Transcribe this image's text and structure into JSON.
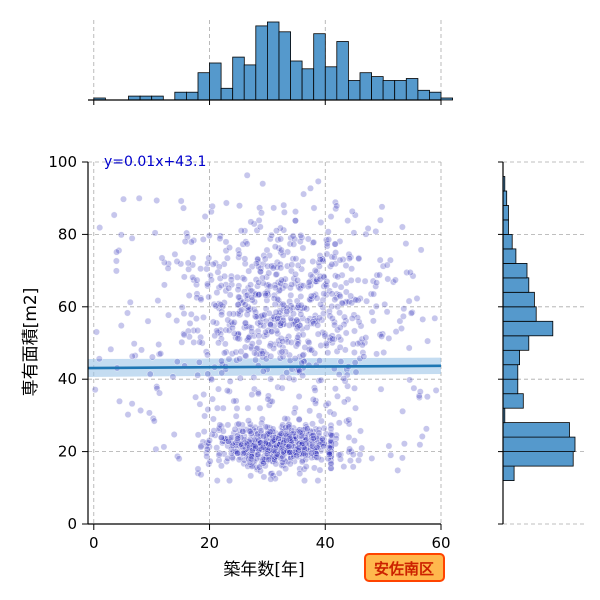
{
  "chart_data": {
    "type": "scatter",
    "xlabel": "築年数[年]",
    "ylabel": "専有面積[m2]",
    "xlim": [
      -1,
      60
    ],
    "ylim": [
      0,
      100
    ],
    "x_ticks": [
      0,
      20,
      40,
      60
    ],
    "y_ticks": [
      0,
      20,
      40,
      60,
      80,
      100
    ],
    "grid": true,
    "regression": {
      "equation_label": "y=0.01x+43.1",
      "slope": 0.01,
      "intercept": 43.1
    },
    "region_label": "安佐南区",
    "marginal_x_histogram": {
      "bin_width": 2,
      "bins": [
        {
          "x": 0,
          "count": 1
        },
        {
          "x": 6,
          "count": 2
        },
        {
          "x": 8,
          "count": 2
        },
        {
          "x": 10,
          "count": 2
        },
        {
          "x": 14,
          "count": 4
        },
        {
          "x": 16,
          "count": 4
        },
        {
          "x": 18,
          "count": 14
        },
        {
          "x": 20,
          "count": 19
        },
        {
          "x": 22,
          "count": 6
        },
        {
          "x": 24,
          "count": 22
        },
        {
          "x": 26,
          "count": 18
        },
        {
          "x": 28,
          "count": 38
        },
        {
          "x": 30,
          "count": 40
        },
        {
          "x": 32,
          "count": 35
        },
        {
          "x": 34,
          "count": 20
        },
        {
          "x": 36,
          "count": 16
        },
        {
          "x": 38,
          "count": 34
        },
        {
          "x": 40,
          "count": 17
        },
        {
          "x": 42,
          "count": 30
        },
        {
          "x": 44,
          "count": 10
        },
        {
          "x": 46,
          "count": 14
        },
        {
          "x": 48,
          "count": 12
        },
        {
          "x": 50,
          "count": 10
        },
        {
          "x": 52,
          "count": 10
        },
        {
          "x": 54,
          "count": 11
        },
        {
          "x": 56,
          "count": 5
        },
        {
          "x": 58,
          "count": 4
        },
        {
          "x": 60,
          "count": 1
        }
      ]
    },
    "marginal_y_histogram": {
      "bin_width": 4,
      "bins": [
        {
          "y": 12,
          "count": 6
        },
        {
          "y": 16,
          "count": 38
        },
        {
          "y": 20,
          "count": 39
        },
        {
          "y": 24,
          "count": 36
        },
        {
          "y": 28,
          "count": 1
        },
        {
          "y": 32,
          "count": 11
        },
        {
          "y": 36,
          "count": 8
        },
        {
          "y": 40,
          "count": 8
        },
        {
          "y": 44,
          "count": 9
        },
        {
          "y": 48,
          "count": 14
        },
        {
          "y": 52,
          "count": 27
        },
        {
          "y": 56,
          "count": 18
        },
        {
          "y": 60,
          "count": 17
        },
        {
          "y": 64,
          "count": 14
        },
        {
          "y": 68,
          "count": 13
        },
        {
          "y": 72,
          "count": 7
        },
        {
          "y": 76,
          "count": 5
        },
        {
          "y": 80,
          "count": 3
        },
        {
          "y": 84,
          "count": 3
        },
        {
          "y": 88,
          "count": 2
        },
        {
          "y": 92,
          "count": 1
        }
      ]
    },
    "colors": {
      "point": "#3333bb",
      "regression_line": "#1f77b4",
      "ci_band": "#9cc5e8",
      "histogram_fill": "#5599cc",
      "grid": "#aaaaaa",
      "equation_text": "#0000cc",
      "badge_fill": "#ffb84d",
      "badge_stroke": "#ff4400",
      "badge_text": "#cc2200"
    }
  }
}
